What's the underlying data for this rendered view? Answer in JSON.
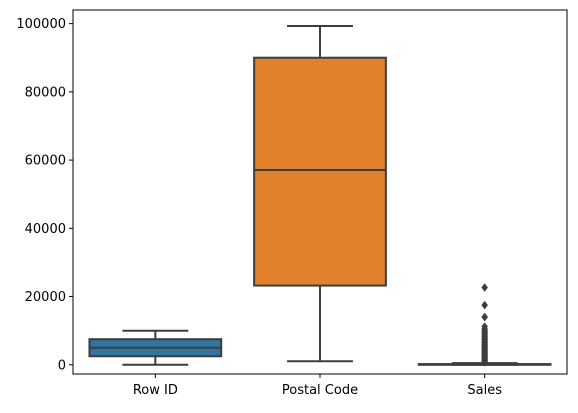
{
  "chart_data": {
    "type": "boxplot",
    "title": "",
    "xlabel": "",
    "ylabel": "",
    "categories": [
      "Row ID",
      "Postal Code",
      "Sales"
    ],
    "ylim": [
      -2700,
      104000
    ],
    "yticks": [
      0,
      20000,
      40000,
      60000,
      80000,
      100000
    ],
    "ytick_labels": [
      "0",
      "20000",
      "40000",
      "60000",
      "80000",
      "100000"
    ],
    "grid": false,
    "legend": "none",
    "boxes": [
      {
        "category": "Row ID",
        "whisker_low": 1,
        "q1": 2500,
        "median": 5000,
        "q3": 7500,
        "whisker_high": 9994,
        "outliers": [],
        "color": "#3274a1"
      },
      {
        "category": "Postal Code",
        "whisker_low": 1040,
        "q1": 23223,
        "median": 57103,
        "q3": 90008,
        "whisker_high": 99301,
        "outliers": [],
        "color": "#e1812c"
      },
      {
        "category": "Sales",
        "whisker_low": 0.44,
        "q1": 17,
        "median": 54,
        "q3": 210,
        "whisker_high": 498,
        "color": "#3a923a",
        "outliers": [
          22638,
          17500,
          14000,
          13999,
          11200,
          10500,
          10000,
          9900,
          9450,
          9100,
          8750,
          8400,
          8160,
          7700,
          7350,
          7000,
          6700,
          6400,
          6100,
          5800,
          5500,
          5200,
          4900,
          4640,
          4400,
          4150,
          3900,
          3650,
          3400,
          3150,
          2900,
          2650,
          2400,
          2150,
          1900,
          1650,
          1400,
          1150,
          900,
          700
        ]
      }
    ],
    "line_color": "#3d3d3d"
  }
}
